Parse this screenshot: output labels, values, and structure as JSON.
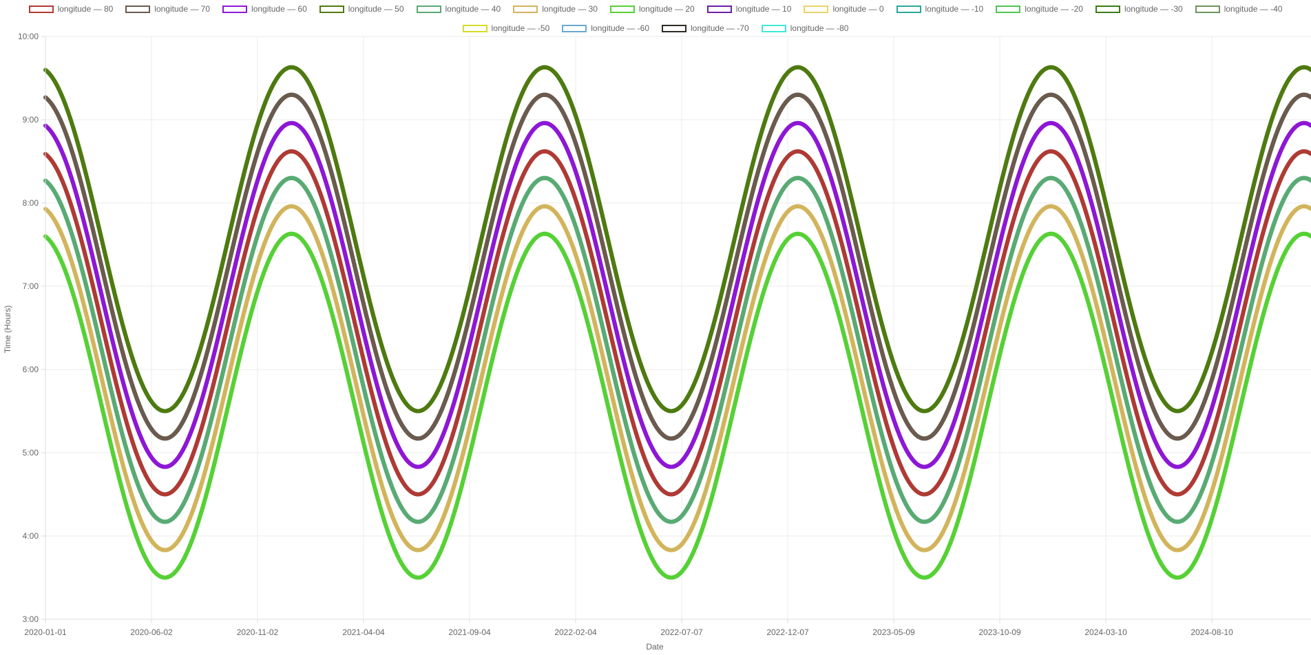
{
  "chart_data": {
    "type": "line",
    "title": "",
    "xlabel": "Date",
    "ylabel": "Time (Hours)",
    "x_tick_labels": [
      "2020-01-01",
      "2020-06-02",
      "2020-11-02",
      "2021-04-04",
      "2021-09-04",
      "2022-02-04",
      "2022-07-07",
      "2022-12-07",
      "2023-05-09",
      "2023-10-09",
      "2024-03-10",
      "2024-08-10"
    ],
    "x_range": [
      "2020-01-01",
      "2024-12-31"
    ],
    "y_tick_labels": [
      "3:00",
      "4:00",
      "5:00",
      "6:00",
      "7:00",
      "8:00",
      "9:00",
      "10:00"
    ],
    "ylim": [
      3,
      10
    ],
    "grid": true,
    "legend_position": "top",
    "period_days": 365.25,
    "peak_date": "2020-12-21",
    "series": [
      {
        "name": "longitude — 80",
        "color": "#b03a33",
        "max": 8.62,
        "min": 4.5
      },
      {
        "name": "longitude — 70",
        "color": "#6b5a4e",
        "max": 9.3,
        "min": 5.17
      },
      {
        "name": "longitude — 60",
        "color": "#8e17d6",
        "max": 8.96,
        "min": 4.83
      },
      {
        "name": "longitude — 50",
        "color": "#4e7a10",
        "max": 9.63,
        "min": 5.5
      },
      {
        "name": "longitude — 40",
        "color": "#5aaa72",
        "max": 8.3,
        "min": 4.17
      },
      {
        "name": "longitude — 30",
        "color": "#d2b45e",
        "max": 7.96,
        "min": 3.83
      },
      {
        "name": "longitude — 20",
        "color": "#56d135",
        "max": 7.63,
        "min": 3.5
      },
      {
        "name": "longitude — 10",
        "color": "#6a1fa8",
        "max": 8.96,
        "min": 4.83
      },
      {
        "name": "longitude — 0",
        "color": "#e9d46a",
        "max": 7.96,
        "min": 3.83
      },
      {
        "name": "longitude — -10",
        "color": "#2aa89c",
        "max": 8.3,
        "min": 4.17
      },
      {
        "name": "longitude — -20",
        "color": "#4fc552",
        "max": 7.63,
        "min": 3.5
      },
      {
        "name": "longitude — -30",
        "color": "#3a7d14",
        "max": 9.63,
        "min": 5.5
      },
      {
        "name": "longitude — -40",
        "color": "#6e9260",
        "max": 9.3,
        "min": 5.17
      },
      {
        "name": "longitude — -50",
        "color": "#d5dc24",
        "max": 7.96,
        "min": 3.83
      },
      {
        "name": "longitude — -60",
        "color": "#6aa8cf",
        "max": 8.62,
        "min": 4.5
      },
      {
        "name": "longitude — -70",
        "color": "#2e2b26",
        "max": 9.3,
        "min": 5.17
      },
      {
        "name": "longitude — -80",
        "color": "#3fe9d4",
        "max": 8.3,
        "min": 4.17
      }
    ]
  }
}
